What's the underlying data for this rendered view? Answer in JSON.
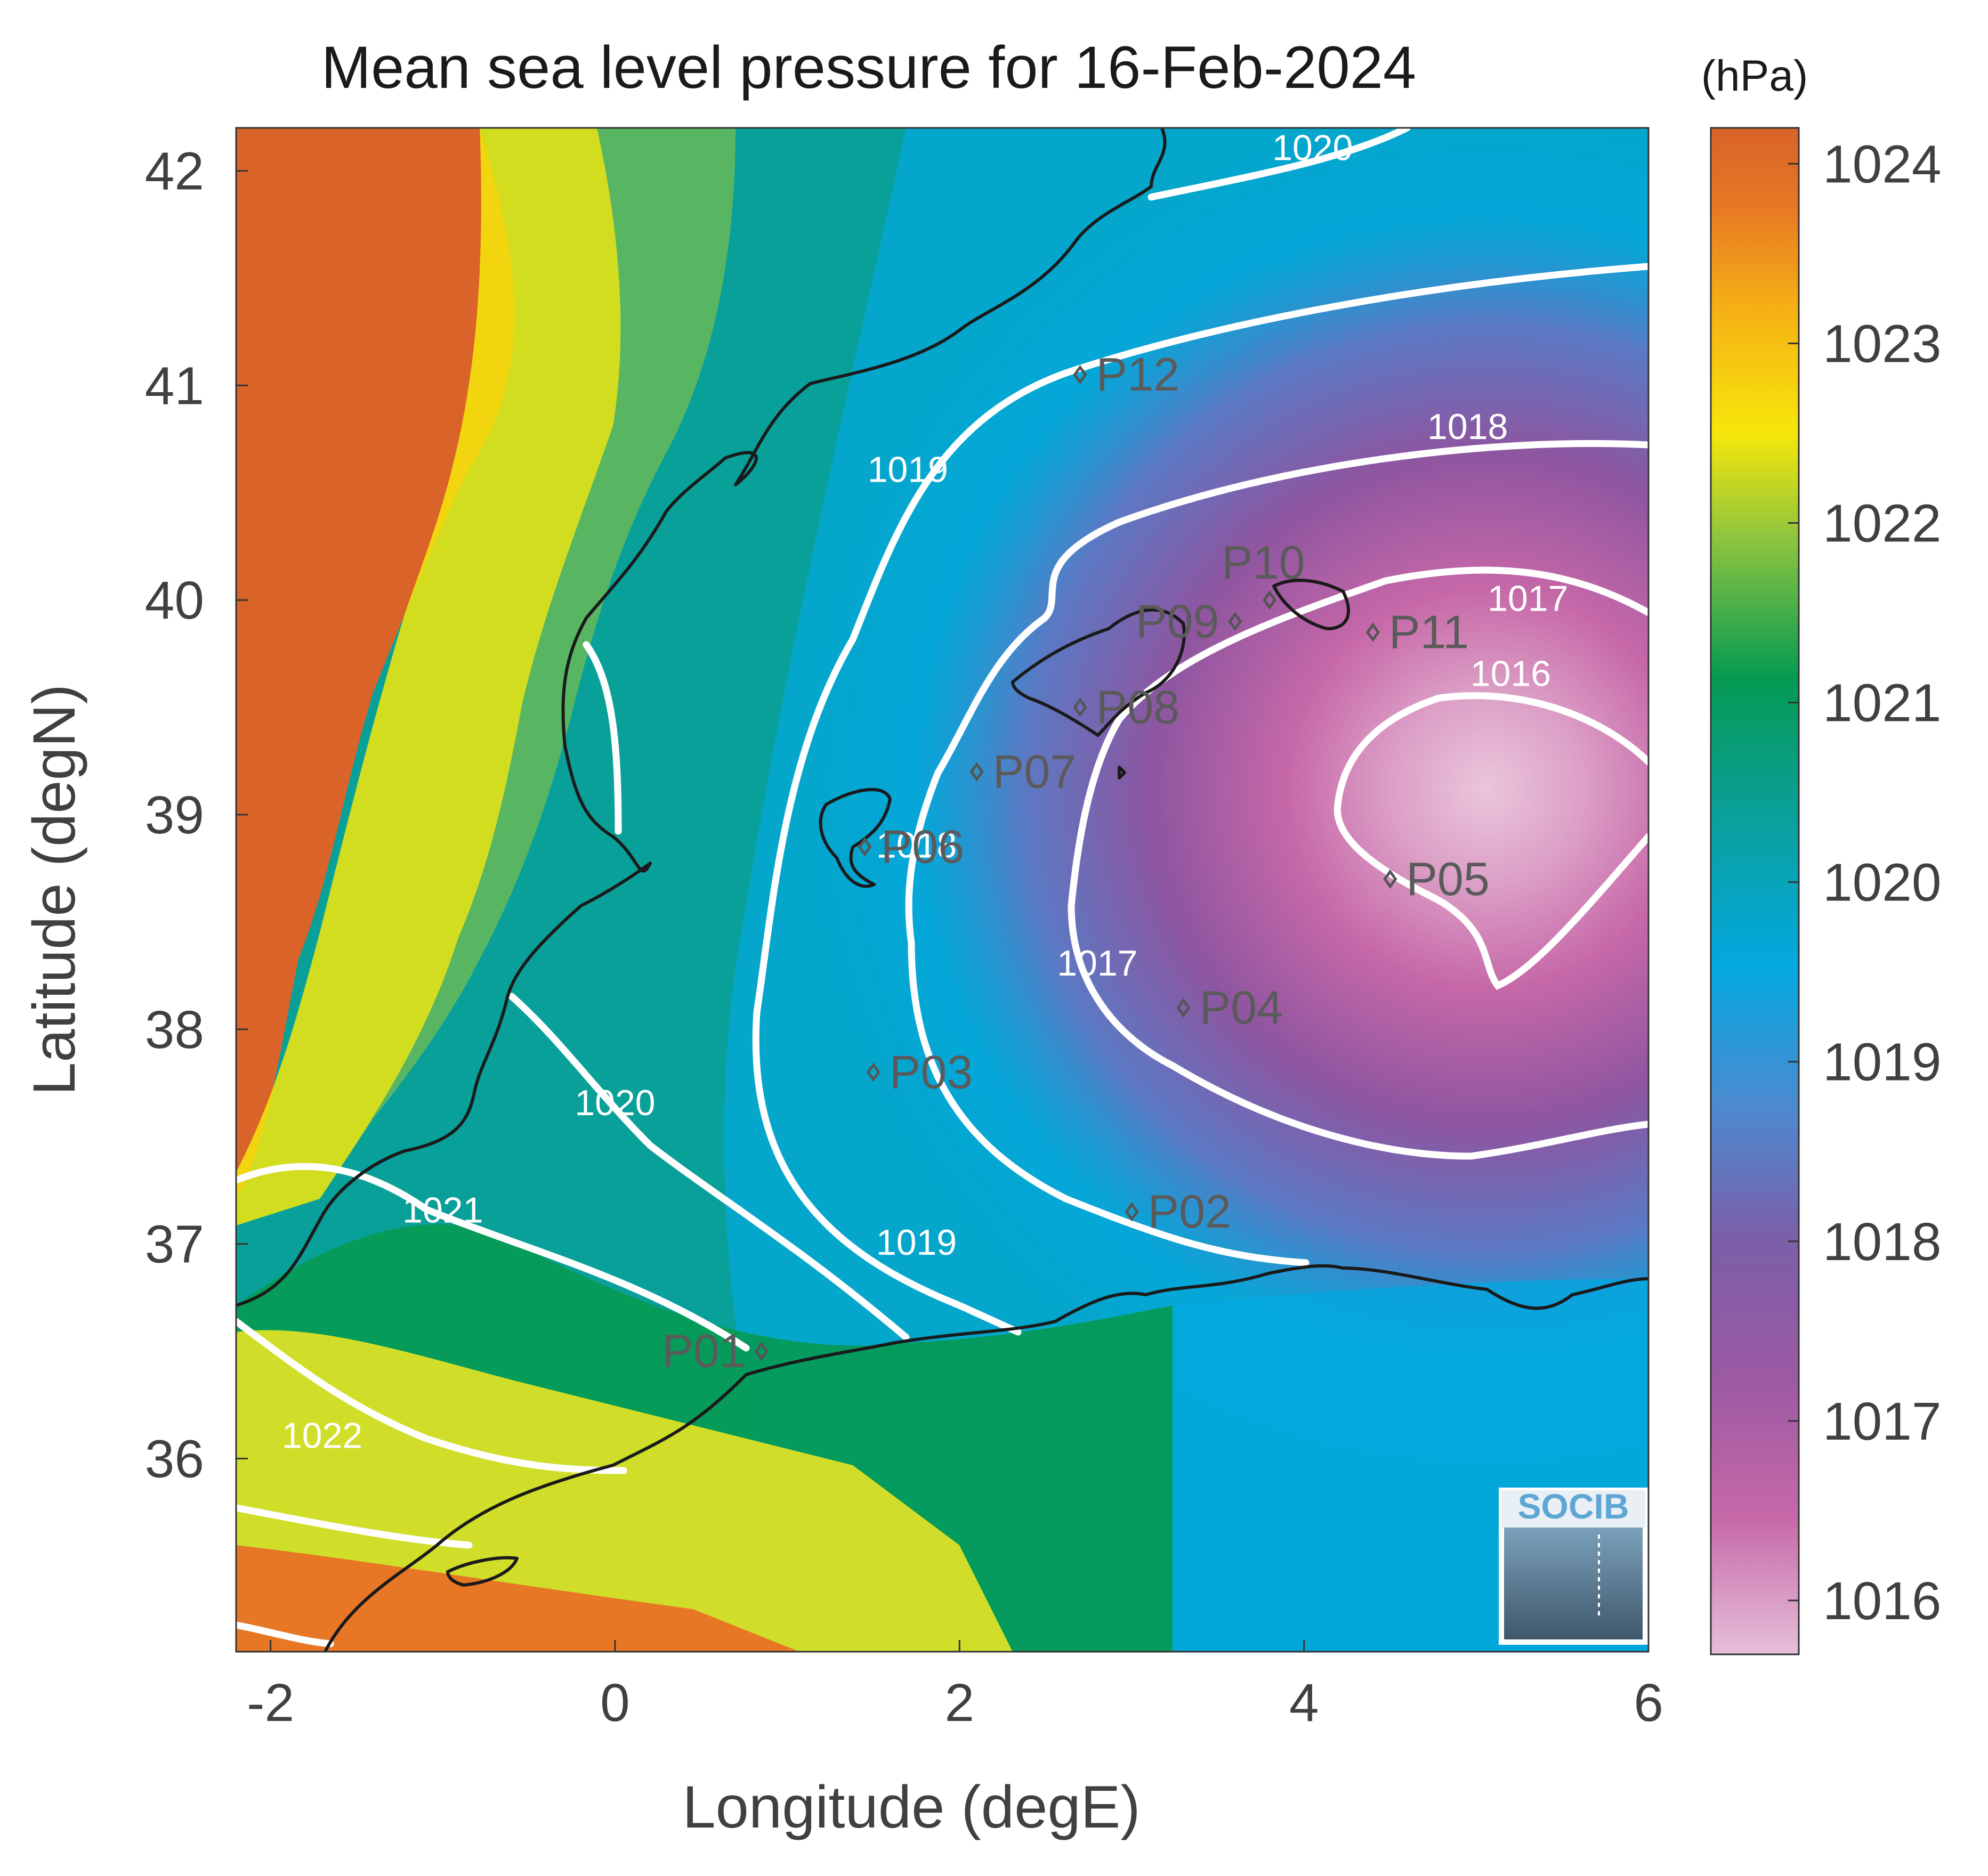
{
  "title": "Mean sea level pressure for 16-Feb-2024",
  "xlabel": "Longitude (degE)",
  "ylabel": "Latitude (degN)",
  "x_ticks": [
    "-2",
    "0",
    "2",
    "4",
    "6"
  ],
  "y_ticks": [
    "36",
    "37",
    "38",
    "39",
    "40",
    "41",
    "42"
  ],
  "colorbar": {
    "unit": "(hPa)",
    "ticks": [
      "1016",
      "1017",
      "1018",
      "1019",
      "1020",
      "1021",
      "1022",
      "1023",
      "1024"
    ],
    "range": [
      1015.7,
      1024.2
    ],
    "colors": [
      "#e6bfd9",
      "#c668a8",
      "#8e55a0",
      "#5b79c4",
      "#03a8e0",
      "#0aa09a",
      "#059a52",
      "#8cc43f",
      "#f6e70a",
      "#f6b115",
      "#e77724",
      "#d96328"
    ]
  },
  "logo": "SOCIB",
  "map": {
    "x_range": [
      -2.2,
      6
    ],
    "y_range": [
      35.1,
      42.2
    ],
    "contour_labels": [
      {
        "text": "1020",
        "lon": 4.05,
        "lat": 42.05
      },
      {
        "text": "1019",
        "lon": 1.7,
        "lat": 40.55
      },
      {
        "text": "1018",
        "lon": 4.95,
        "lat": 40.75
      },
      {
        "text": "1017",
        "lon": 5.3,
        "lat": 39.95
      },
      {
        "text": "1016",
        "lon": 5.2,
        "lat": 39.6
      },
      {
        "text": "1018",
        "lon": 1.75,
        "lat": 38.8
      },
      {
        "text": "1017",
        "lon": 2.8,
        "lat": 38.25
      },
      {
        "text": "1020",
        "lon": 0.0,
        "lat": 37.6
      },
      {
        "text": "1019",
        "lon": 1.75,
        "lat": 36.95
      },
      {
        "text": "1021",
        "lon": -1.0,
        "lat": 37.1
      },
      {
        "text": "1022",
        "lon": -1.7,
        "lat": 36.05
      }
    ],
    "stations": [
      {
        "name": "P01",
        "lon": 0.85,
        "lat": 36.5,
        "label_side": "left"
      },
      {
        "name": "P02",
        "lon": 3.0,
        "lat": 37.15,
        "label_side": "right"
      },
      {
        "name": "P03",
        "lon": 1.5,
        "lat": 37.8,
        "label_side": "right"
      },
      {
        "name": "P04",
        "lon": 3.3,
        "lat": 38.1,
        "label_side": "right"
      },
      {
        "name": "P05",
        "lon": 4.5,
        "lat": 38.7,
        "label_side": "right"
      },
      {
        "name": "P06",
        "lon": 1.45,
        "lat": 38.85,
        "label_side": "right"
      },
      {
        "name": "P07",
        "lon": 2.1,
        "lat": 39.2,
        "label_side": "right"
      },
      {
        "name": "P08",
        "lon": 2.7,
        "lat": 39.5,
        "label_side": "right"
      },
      {
        "name": "P09",
        "lon": 3.6,
        "lat": 39.9,
        "label_side": "left"
      },
      {
        "name": "P10",
        "lon": 3.8,
        "lat": 40.0,
        "label_side": "above"
      },
      {
        "name": "P11",
        "lon": 4.4,
        "lat": 39.85,
        "label_side": "right"
      },
      {
        "name": "P12",
        "lon": 2.7,
        "lat": 41.05,
        "label_side": "right"
      }
    ]
  }
}
